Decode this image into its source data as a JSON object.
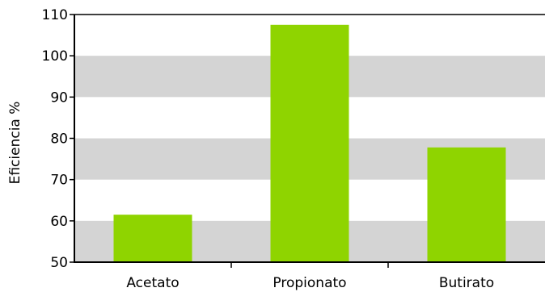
{
  "chart_data": {
    "type": "bar",
    "categories": [
      "Acetato",
      "Propionato",
      "Butirato"
    ],
    "values": [
      61.5,
      107.5,
      77.8
    ],
    "title": "",
    "xlabel": "",
    "ylabel": "Eficiencia %",
    "ylim": [
      50,
      110
    ],
    "yticks": [
      50,
      60,
      70,
      80,
      90,
      100,
      110
    ],
    "grid": "alternating horizontal bands",
    "legend": "none",
    "colors": {
      "bar": "#8fd400",
      "band": "#d4d4d4",
      "axis": "#000000"
    }
  }
}
